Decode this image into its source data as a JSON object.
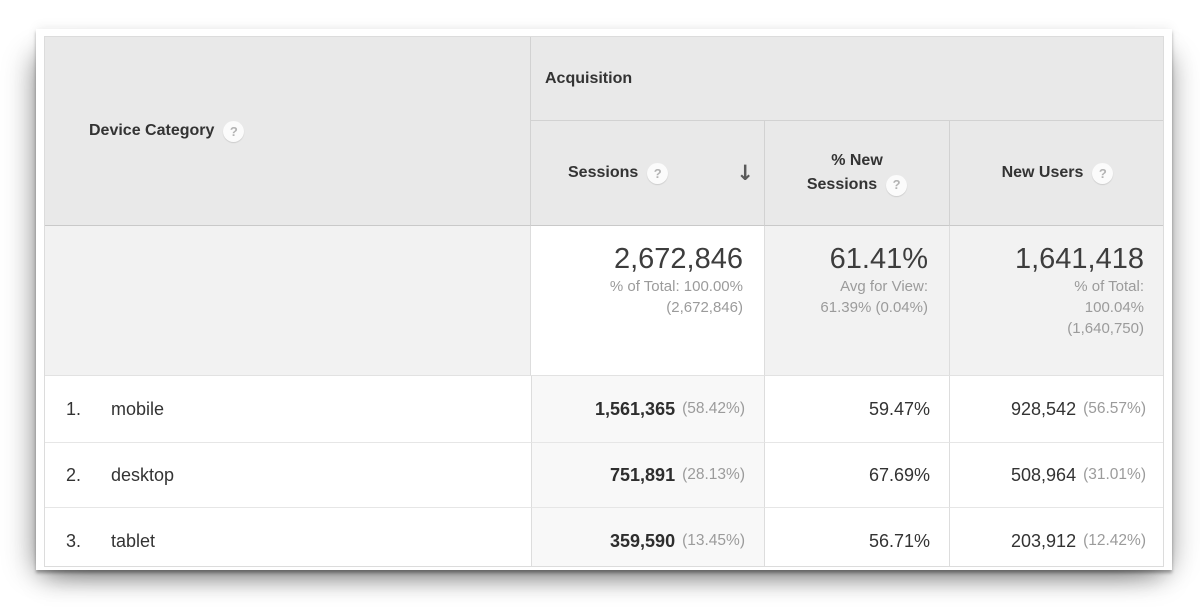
{
  "icons": {
    "help": "?",
    "sort_desc": "↓"
  },
  "table": {
    "dimension_header": {
      "label": "Device Category"
    },
    "group_header": {
      "label": "Acquisition"
    },
    "columns": [
      {
        "label": "Sessions",
        "sorted": "descending"
      },
      {
        "label_lines": [
          "% New",
          "Sessions"
        ]
      },
      {
        "label": "New Users"
      }
    ],
    "summary": [
      {
        "value": "2,672,846",
        "notes": [
          "% of Total: 100.00%",
          "(2,672,846)"
        ]
      },
      {
        "value": "61.41%",
        "notes": [
          "Avg for View:",
          "61.39% (0.04%)"
        ]
      },
      {
        "value": "1,641,418",
        "notes": [
          "% of Total:",
          "100.04%",
          "(1,640,750)"
        ]
      }
    ],
    "rows": [
      {
        "index": "1.",
        "device": "mobile",
        "sessions": "1,561,365",
        "sessions_pct": "(58.42%)",
        "pct_new_sessions": "59.47%",
        "new_users": "928,542",
        "new_users_pct": "(56.57%)"
      },
      {
        "index": "2.",
        "device": "desktop",
        "sessions": "751,891",
        "sessions_pct": "(28.13%)",
        "pct_new_sessions": "67.69%",
        "new_users": "508,964",
        "new_users_pct": "(31.01%)"
      },
      {
        "index": "3.",
        "device": "tablet",
        "sessions": "359,590",
        "sessions_pct": "(13.45%)",
        "pct_new_sessions": "56.71%",
        "new_users": "203,912",
        "new_users_pct": "(12.42%)"
      }
    ],
    "colors": {
      "header_bg": "#e9e9e9",
      "summary_row_bg": "#f2f2f2",
      "sorted_summary_cell_bg": "#ffffff",
      "sorted_data_cell_bg": "#f8f8f8",
      "border": "#dddddd",
      "text_primary": "#333333",
      "text_secondary": "#9b9b9b"
    }
  }
}
